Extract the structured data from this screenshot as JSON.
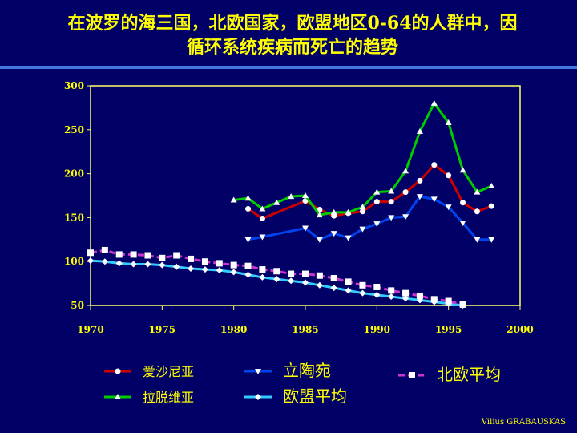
{
  "title_line1": "在波罗的海三国，北欧国家，欧盟地区0-64的人群中，因",
  "title_line2": "循环系统疾病而死亡的趋势",
  "credit": "Vilius GRABAUSKAS",
  "colors": {
    "background": "#000066",
    "text": "#ffff00",
    "plot_border": "#ffff66"
  },
  "chart_data": {
    "type": "line",
    "title": "在波罗的海三国，北欧国家，欧盟地区0-64的人群中，因循环系统疾病而死亡的趋势",
    "xlabel": "",
    "ylabel": "",
    "xlim": [
      1970,
      2000
    ],
    "ylim": [
      50,
      300
    ],
    "x_ticks": [
      1970,
      1975,
      1980,
      1985,
      1990,
      1995,
      2000
    ],
    "y_ticks": [
      50,
      100,
      150,
      200,
      250,
      300
    ],
    "grid": false,
    "legend_position": "bottom",
    "series": [
      {
        "name": "爱沙尼亚",
        "color": "#cc0000",
        "marker": "circle",
        "marker_color": "#ffffff",
        "x": [
          1981,
          1982,
          1985,
          1986,
          1987,
          1988,
          1989,
          1990,
          1991,
          1992,
          1993,
          1994,
          1995,
          1996,
          1997,
          1998
        ],
        "y": [
          160,
          149,
          169,
          159,
          152,
          155,
          157,
          168,
          168,
          179,
          192,
          210,
          198,
          167,
          157,
          163
        ]
      },
      {
        "name": "拉脱维亚",
        "color": "#00cc00",
        "marker": "triangle-up",
        "marker_color": "#ffffff",
        "x": [
          1980,
          1981,
          1982,
          1983,
          1984,
          1985,
          1986,
          1987,
          1988,
          1989,
          1990,
          1991,
          1992,
          1993,
          1994,
          1995,
          1996,
          1997,
          1998
        ],
        "y": [
          170,
          172,
          160,
          167,
          174,
          175,
          153,
          156,
          156,
          162,
          179,
          180,
          203,
          248,
          280,
          258,
          204,
          179,
          186
        ]
      },
      {
        "name": "立陶宛",
        "color": "#0044ee",
        "marker": "triangle-down",
        "marker_color": "#ffffff",
        "x": [
          1981,
          1982,
          1985,
          1986,
          1987,
          1988,
          1989,
          1990,
          1991,
          1992,
          1993,
          1994,
          1995,
          1996,
          1997,
          1998
        ],
        "y": [
          125,
          128,
          138,
          125,
          132,
          127,
          137,
          143,
          150,
          151,
          174,
          171,
          162,
          144,
          125,
          125
        ]
      },
      {
        "name": "欧盟平均",
        "color": "#33ccff",
        "marker": "diamond",
        "marker_color": "#ffffff",
        "x": [
          1970,
          1971,
          1972,
          1973,
          1974,
          1975,
          1976,
          1977,
          1978,
          1979,
          1980,
          1981,
          1982,
          1983,
          1984,
          1985,
          1986,
          1987,
          1988,
          1989,
          1990,
          1991,
          1992,
          1993,
          1994,
          1995,
          1996
        ],
        "y": [
          101,
          100,
          98,
          97,
          97,
          96,
          94,
          92,
          91,
          90,
          88,
          85,
          82,
          80,
          78,
          76,
          73,
          70,
          67,
          64,
          62,
          60,
          58,
          56,
          54,
          52,
          50
        ]
      },
      {
        "name": "北欧平均",
        "color": "#cc33cc",
        "marker": "square",
        "marker_color": "#ffffff",
        "dashed": true,
        "x": [
          1970,
          1971,
          1972,
          1973,
          1974,
          1975,
          1976,
          1977,
          1978,
          1979,
          1980,
          1981,
          1982,
          1983,
          1984,
          1985,
          1986,
          1987,
          1988,
          1989,
          1990,
          1991,
          1992,
          1993,
          1994,
          1995,
          1996
        ],
        "y": [
          110,
          113,
          108,
          108,
          107,
          104,
          107,
          103,
          100,
          98,
          96,
          95,
          91,
          89,
          86,
          86,
          84,
          81,
          77,
          73,
          71,
          67,
          64,
          61,
          57,
          55,
          51
        ]
      }
    ]
  }
}
